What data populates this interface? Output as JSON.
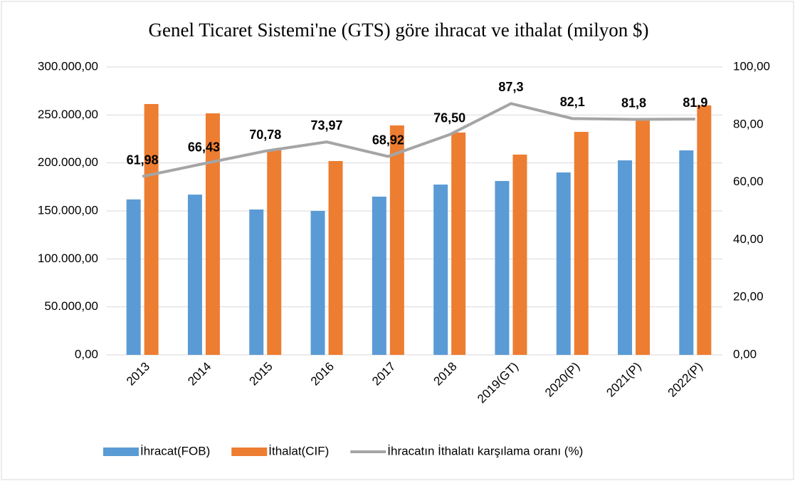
{
  "chart_data": {
    "type": "bar-line",
    "title": "Genel Ticaret Sistemi'ne (GTS) göre ihracat ve ithalat (milyon $)",
    "categories": [
      "2013",
      "2014",
      "2015",
      "2016",
      "2017",
      "2018",
      "2019(GT)",
      "2020(P)",
      "2021(P)",
      "2022(P)"
    ],
    "series": [
      {
        "name": "İhracat(FOB)",
        "type": "bar",
        "color": "#5b9bd5",
        "values": [
          162000,
          167000,
          151500,
          150000,
          164900,
          177500,
          181200,
          190100,
          202700,
          213100
        ]
      },
      {
        "name": "İthalat(CIF)",
        "type": "bar",
        "color": "#ed7d31",
        "values": [
          261400,
          251700,
          213900,
          202000,
          239100,
          231700,
          208700,
          232400,
          246600,
          260000
        ]
      },
      {
        "name": "İhracatın İthalatı karşılama oranı (%)",
        "type": "line",
        "axis": "y2",
        "color": "#a5a5a5",
        "values": [
          61.98,
          66.43,
          70.78,
          73.97,
          68.92,
          76.5,
          87.3,
          82.1,
          81.8,
          81.9
        ],
        "value_labels": [
          "61,98",
          "66,43",
          "70,78",
          "73,97",
          "68,92",
          "76,50",
          "87,3",
          "82,1",
          "81,8",
          "81,9"
        ]
      }
    ],
    "ylim": [
      0,
      300000
    ],
    "yticks": [
      {
        "value": 0,
        "label": "0,00"
      },
      {
        "value": 50000,
        "label": "50.000,00"
      },
      {
        "value": 100000,
        "label": "100.000,00"
      },
      {
        "value": 150000,
        "label": "150.000,00"
      },
      {
        "value": 200000,
        "label": "200.000,00"
      },
      {
        "value": 250000,
        "label": "250.000,00"
      },
      {
        "value": 300000,
        "label": "300.000,00"
      }
    ],
    "y2lim": [
      0,
      100
    ],
    "y2ticks": [
      {
        "value": 0,
        "label": "0,00"
      },
      {
        "value": 20,
        "label": "20,00"
      },
      {
        "value": 40,
        "label": "40,00"
      },
      {
        "value": 60,
        "label": "60,00"
      },
      {
        "value": 80,
        "label": "80,00"
      },
      {
        "value": 100,
        "label": "100,00"
      }
    ],
    "grid": true,
    "legend": "bottom"
  }
}
